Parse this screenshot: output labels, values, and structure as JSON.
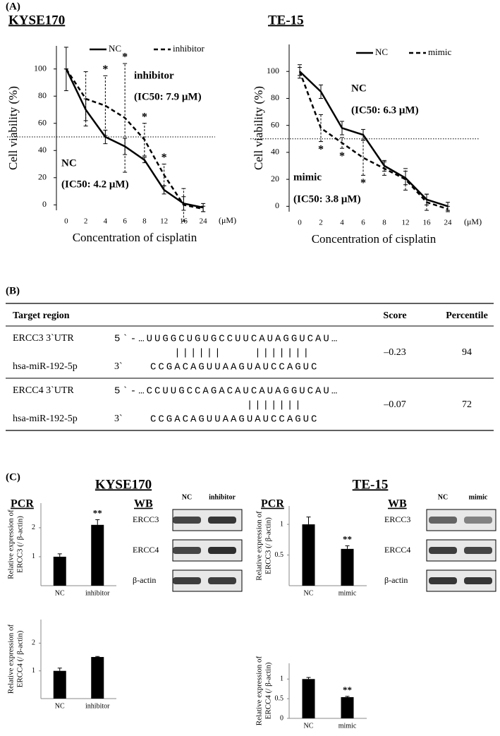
{
  "panels": [
    "(A)",
    "(B)",
    "(C)"
  ],
  "chart_data": [
    {
      "type": "line",
      "title": "KYSE170",
      "xlabel": "Concentration of cisplatin",
      "x_unit": "(μM)",
      "ylabel": "Cell viability (%)",
      "categories": [
        "0",
        "2",
        "4",
        "6",
        "8",
        "12",
        "16",
        "24"
      ],
      "ylim": [
        -4,
        117
      ],
      "yticks": [
        0,
        20,
        40,
        60,
        80,
        100
      ],
      "grid": false,
      "reference_line": 50,
      "annotations": [
        "inhibitor",
        "(IC50: 7.9 μM)",
        "NC",
        "(IC50: 4.2 μM)"
      ],
      "series": [
        {
          "name": "NC",
          "color": "#000000",
          "dashed": false,
          "values": [
            100,
            70,
            50,
            43,
            33,
            11,
            1,
            -2
          ],
          "errors": [
            16,
            8,
            5,
            6,
            2,
            3,
            5,
            3
          ],
          "significance": [
            null,
            null,
            null,
            null,
            null,
            null,
            null,
            null
          ]
        },
        {
          "name": "inhibitor",
          "color": "#000000",
          "dashed": true,
          "values": [
            100,
            78,
            73,
            64,
            48,
            22,
            0,
            -3
          ],
          "errors": [
            0,
            20,
            22,
            40,
            12,
            8,
            12,
            2
          ],
          "significance": [
            null,
            null,
            "*",
            "*",
            "*",
            "*",
            null,
            null
          ]
        }
      ]
    },
    {
      "type": "line",
      "title": "TE-15",
      "xlabel": "Concentration of cisplatin",
      "x_unit": "(μM)",
      "ylabel": "Cell viability (%)",
      "categories": [
        "0",
        "2",
        "4",
        "6",
        "8",
        "12",
        "16",
        "24"
      ],
      "ylim": [
        -4,
        120
      ],
      "yticks": [
        0,
        20,
        40,
        60,
        80,
        100
      ],
      "grid": false,
      "reference_line": 50,
      "annotations": [
        "NC",
        "(IC50: 6.3 μM)",
        "mimic",
        "(IC50: 3.8 μM)"
      ],
      "series": [
        {
          "name": "NC",
          "color": "#000000",
          "dashed": false,
          "values": [
            100,
            85,
            58,
            53,
            30,
            21,
            5,
            0
          ],
          "errors": [
            3,
            5,
            5,
            4,
            4,
            5,
            4,
            3
          ],
          "significance": [
            null,
            null,
            null,
            null,
            null,
            null,
            null,
            null
          ]
        },
        {
          "name": "mimic",
          "color": "#000000",
          "dashed": true,
          "values": [
            100,
            58,
            47,
            36,
            28,
            20,
            3,
            -2
          ],
          "errors": [
            5,
            10,
            4,
            13,
            5,
            8,
            6,
            2
          ],
          "significance": [
            null,
            "*",
            "*",
            "*",
            null,
            null,
            null,
            null
          ]
        }
      ]
    },
    {
      "type": "bar",
      "title": "PCR",
      "ylabel": [
        "Relative expression of",
        "ERCC3 (/ β-actin)"
      ],
      "categories": [
        "NC",
        "inhibitor"
      ],
      "values": [
        1,
        2.1
      ],
      "errors": [
        0.1,
        0.18
      ],
      "significance": [
        null,
        "**"
      ],
      "color": "#000000",
      "ylim": [
        0,
        2.85
      ],
      "yticks": [
        1,
        2
      ]
    },
    {
      "type": "bar",
      "ylabel": [
        "Relative expression of",
        "ERCC4 (/ β-actin)"
      ],
      "categories": [
        "NC",
        "inhibitor"
      ],
      "values": [
        1,
        1.5
      ],
      "errors": [
        0.1,
        0.02
      ],
      "significance": [
        null,
        null
      ],
      "color": "#000000",
      "ylim": [
        0,
        2.85
      ],
      "yticks": [
        1,
        2
      ]
    },
    {
      "type": "bar",
      "title": "PCR",
      "ylabel": [
        "Relative expression of",
        "ERCC3 (/ β-actin)"
      ],
      "categories": [
        "NC",
        "mimic"
      ],
      "values": [
        1,
        0.6
      ],
      "errors": [
        0.12,
        0.05
      ],
      "significance": [
        null,
        "**"
      ],
      "color": "#000000",
      "ylim": [
        0,
        1.3
      ],
      "yticks": [
        0.5,
        1
      ]
    },
    {
      "type": "bar",
      "ylabel": [
        "Relative expression of",
        "ERCC4 (/ β-actin)"
      ],
      "categories": [
        "NC",
        "mimic"
      ],
      "values": [
        1,
        0.54
      ],
      "errors": [
        0.04,
        0.02
      ],
      "significance": [
        null,
        "**"
      ],
      "color": "#000000",
      "ylim": [
        0,
        1.4
      ],
      "yticks": [
        0,
        0.5,
        1
      ]
    }
  ],
  "table": {
    "header": [
      "Target region",
      "Score",
      "Percentile"
    ],
    "rows": [
      {
        "target": "ERCC3 3`UTR",
        "target_seq": "5`-…UUGGCUGUGCCUUCAUAGGUCAU…",
        "pairing": "   ||||||    |||||||",
        "mirna": "hsa-miR-192-5p",
        "mirna_end": "3`",
        "mirna_seq": "CCGACAGUUAAGUAUCCAGUC",
        "score": "–0.23",
        "percentile": 94
      },
      {
        "target": "ERCC4 3`UTR",
        "target_seq": "5`-…CCUUGCCAGACAUCAUAGGUCAU…",
        "pairing": "            |||||||",
        "mirna": "hsa-miR-192-5p",
        "mirna_end": "3`",
        "mirna_seq": "CCGACAGUUAAGUAUCCAGUC",
        "score": "–0.07",
        "percentile": 72
      }
    ]
  },
  "panel_c_titles": [
    "KYSE170",
    "TE-15"
  ],
  "western_blots": [
    {
      "title": "WB",
      "lanes": [
        "NC",
        "inhibitor"
      ],
      "proteins": [
        "ERCC3",
        "ERCC4",
        "β-actin"
      ]
    },
    {
      "title": "WB",
      "lanes": [
        "NC",
        "mimic"
      ],
      "proteins": [
        "ERCC3",
        "ERCC4",
        "β-actin"
      ]
    }
  ]
}
